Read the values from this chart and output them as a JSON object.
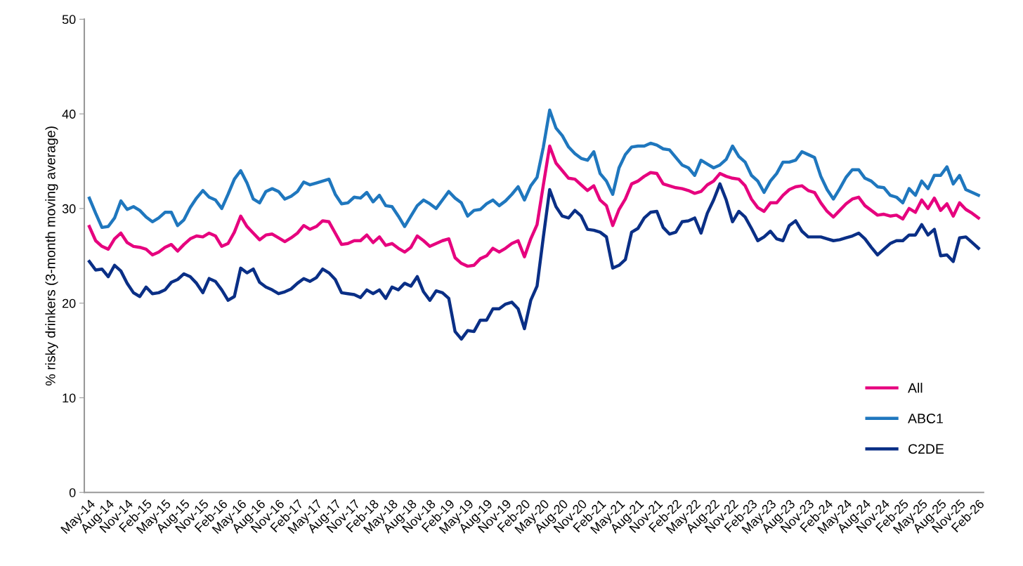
{
  "chart_data": {
    "type": "line",
    "ylabel": "% risky drinkers (3-month moving average)",
    "categories": [
      "May-14",
      null,
      null,
      "Aug-14",
      null,
      null,
      "Nov-14",
      null,
      null,
      "Feb-15",
      null,
      null,
      "May-15",
      null,
      null,
      "Aug-15",
      null,
      null,
      "Nov-15",
      null,
      null,
      "Feb-16",
      null,
      null,
      "May-16",
      null,
      null,
      "Aug-16",
      null,
      null,
      "Nov-16",
      null,
      null,
      "Feb-17",
      null,
      null,
      "May-17",
      null,
      null,
      "Aug-17",
      null,
      null,
      "Nov-17",
      null,
      null,
      "Feb-18",
      null,
      null,
      "May-18",
      null,
      null,
      "Aug-18",
      null,
      null,
      "Nov-18",
      null,
      null,
      "Feb-19",
      null,
      null,
      "May-19",
      null,
      null,
      "Aug-19",
      null,
      null,
      "Nov-19",
      null,
      null,
      "Feb-20",
      null,
      null,
      "May-20",
      null,
      null,
      "Aug-20",
      null,
      null,
      "Nov-20",
      null,
      null,
      "Feb-21",
      null,
      null,
      "May-21",
      null,
      null,
      "Aug-21",
      null,
      null,
      "Nov-21",
      null,
      null,
      "Feb-22",
      null,
      null,
      "May-22",
      null,
      null,
      "Aug-22",
      null,
      null,
      "Nov-22",
      null,
      null,
      "Feb-23",
      null,
      null,
      "May-23",
      null,
      null,
      "Aug-23",
      null,
      null,
      "Nov-23",
      null,
      null,
      "Feb-24",
      null,
      null,
      "May-24",
      null,
      null,
      "Aug-24",
      null,
      null,
      "Nov-24",
      null,
      null,
      "Feb-25",
      null,
      null,
      "May-25",
      null,
      null,
      "Aug-25",
      null,
      null,
      "Nov-25",
      null,
      null,
      "Feb-26"
    ],
    "series": [
      {
        "name": "All",
        "color": "#e6007e",
        "values": [
          28.1,
          26.6,
          26.0,
          25.7,
          26.8,
          27.4,
          26.4,
          26.0,
          25.9,
          25.7,
          25.1,
          25.4,
          25.9,
          26.2,
          25.5,
          26.2,
          26.8,
          27.1,
          27.0,
          27.4,
          27.1,
          26.0,
          26.3,
          27.5,
          29.2,
          28.1,
          27.4,
          26.7,
          27.2,
          27.3,
          26.9,
          26.5,
          26.9,
          27.4,
          28.2,
          27.8,
          28.1,
          28.7,
          28.6,
          27.4,
          26.2,
          26.3,
          26.6,
          26.6,
          27.2,
          26.4,
          27.0,
          26.1,
          26.3,
          25.8,
          25.4,
          25.9,
          27.1,
          26.6,
          26.0,
          26.3,
          26.6,
          26.8,
          24.8,
          24.2,
          23.9,
          24.0,
          24.7,
          25.0,
          25.8,
          25.4,
          25.8,
          26.3,
          26.6,
          24.9,
          26.8,
          28.3,
          32.5,
          36.6,
          34.8,
          34.0,
          33.2,
          33.1,
          32.5,
          31.9,
          32.4,
          30.9,
          30.3,
          28.2,
          29.9,
          31.0,
          32.6,
          32.9,
          33.4,
          33.8,
          33.7,
          32.6,
          32.4,
          32.2,
          32.1,
          31.9,
          31.6,
          31.8,
          32.5,
          32.9,
          33.7,
          33.4,
          33.2,
          33.1,
          32.4,
          31.0,
          30.1,
          29.7,
          30.6,
          30.6,
          31.4,
          32.0,
          32.3,
          32.4,
          31.9,
          31.7,
          30.6,
          29.7,
          29.1,
          29.8,
          30.5,
          31.0,
          31.2,
          30.3,
          29.8,
          29.3,
          29.4,
          29.2,
          29.3,
          28.9,
          30.0,
          29.6,
          30.9,
          30.0,
          31.1,
          29.8,
          30.5,
          29.2,
          30.6,
          29.9,
          29.5,
          29.0
        ]
      },
      {
        "name": "ABC1",
        "color": "#1f77be",
        "values": [
          31.1,
          29.5,
          28.0,
          28.1,
          29.0,
          30.8,
          29.9,
          30.2,
          29.8,
          29.1,
          28.6,
          29.0,
          29.6,
          29.6,
          28.2,
          28.8,
          30.1,
          31.1,
          31.9,
          31.2,
          30.9,
          30.0,
          31.5,
          33.1,
          34.0,
          32.7,
          31.0,
          30.6,
          31.8,
          32.1,
          31.8,
          31.0,
          31.3,
          31.8,
          32.8,
          32.5,
          32.7,
          32.9,
          33.1,
          31.5,
          30.5,
          30.6,
          31.2,
          31.1,
          31.7,
          30.7,
          31.4,
          30.3,
          30.2,
          29.2,
          28.1,
          29.2,
          30.3,
          30.9,
          30.5,
          30.0,
          30.9,
          31.8,
          31.1,
          30.6,
          29.2,
          29.8,
          29.9,
          30.5,
          30.9,
          30.3,
          30.8,
          31.5,
          32.3,
          30.9,
          32.4,
          33.3,
          36.5,
          40.4,
          38.5,
          37.7,
          36.5,
          35.8,
          35.3,
          35.1,
          36.0,
          33.7,
          32.9,
          31.5,
          34.3,
          35.7,
          36.5,
          36.6,
          36.6,
          36.9,
          36.7,
          36.3,
          36.2,
          35.4,
          34.6,
          34.3,
          33.5,
          35.1,
          34.7,
          34.3,
          34.6,
          35.2,
          36.6,
          35.5,
          34.9,
          33.5,
          32.9,
          31.7,
          32.9,
          33.7,
          34.9,
          34.9,
          35.1,
          36.0,
          35.7,
          35.4,
          33.4,
          32.0,
          31.0,
          32.1,
          33.3,
          34.1,
          34.1,
          33.2,
          32.9,
          32.3,
          32.2,
          31.4,
          31.2,
          30.6,
          32.1,
          31.4,
          32.9,
          32.1,
          33.5,
          33.5,
          34.4,
          32.6,
          33.5,
          32.0,
          31.7,
          31.4
        ]
      },
      {
        "name": "C2DE",
        "color": "#0a2f86",
        "values": [
          24.4,
          23.5,
          23.6,
          22.8,
          24.0,
          23.4,
          22.1,
          21.1,
          20.7,
          21.7,
          21.0,
          21.1,
          21.4,
          22.2,
          22.5,
          23.1,
          22.8,
          22.1,
          21.1,
          22.6,
          22.3,
          21.4,
          20.3,
          20.7,
          23.7,
          23.2,
          23.6,
          22.2,
          21.7,
          21.4,
          21.0,
          21.2,
          21.5,
          22.1,
          22.6,
          22.3,
          22.7,
          23.6,
          23.2,
          22.5,
          21.1,
          21.0,
          20.9,
          20.6,
          21.4,
          21.0,
          21.4,
          20.5,
          21.7,
          21.4,
          22.1,
          21.8,
          22.8,
          21.2,
          20.3,
          21.3,
          21.1,
          20.5,
          17.0,
          16.2,
          17.1,
          17.0,
          18.2,
          18.2,
          19.4,
          19.4,
          19.9,
          20.1,
          19.4,
          17.3,
          20.3,
          21.8,
          27.0,
          32.0,
          30.2,
          29.2,
          29.0,
          29.8,
          29.2,
          27.8,
          27.7,
          27.5,
          27.0,
          23.7,
          24.0,
          24.6,
          27.5,
          27.9,
          29.0,
          29.6,
          29.7,
          28.0,
          27.3,
          27.5,
          28.6,
          28.7,
          29.0,
          27.4,
          29.5,
          30.9,
          32.6,
          30.9,
          28.6,
          29.7,
          29.1,
          27.9,
          26.6,
          27.0,
          27.6,
          26.8,
          26.6,
          28.2,
          28.7,
          27.6,
          27.0,
          27.0,
          27.0,
          26.8,
          26.6,
          26.7,
          26.9,
          27.1,
          27.4,
          26.8,
          25.9,
          25.1,
          25.7,
          26.3,
          26.6,
          26.6,
          27.2,
          27.2,
          28.3,
          27.2,
          27.8,
          25.0,
          25.1,
          24.4,
          26.9,
          27.0,
          26.4,
          25.8
        ]
      }
    ],
    "ylim": [
      0,
      50
    ],
    "yticks": [
      0,
      10,
      20,
      30,
      40,
      50
    ],
    "grid": false,
    "legend": "bottom right",
    "marker": "none",
    "line_style": "solid"
  }
}
